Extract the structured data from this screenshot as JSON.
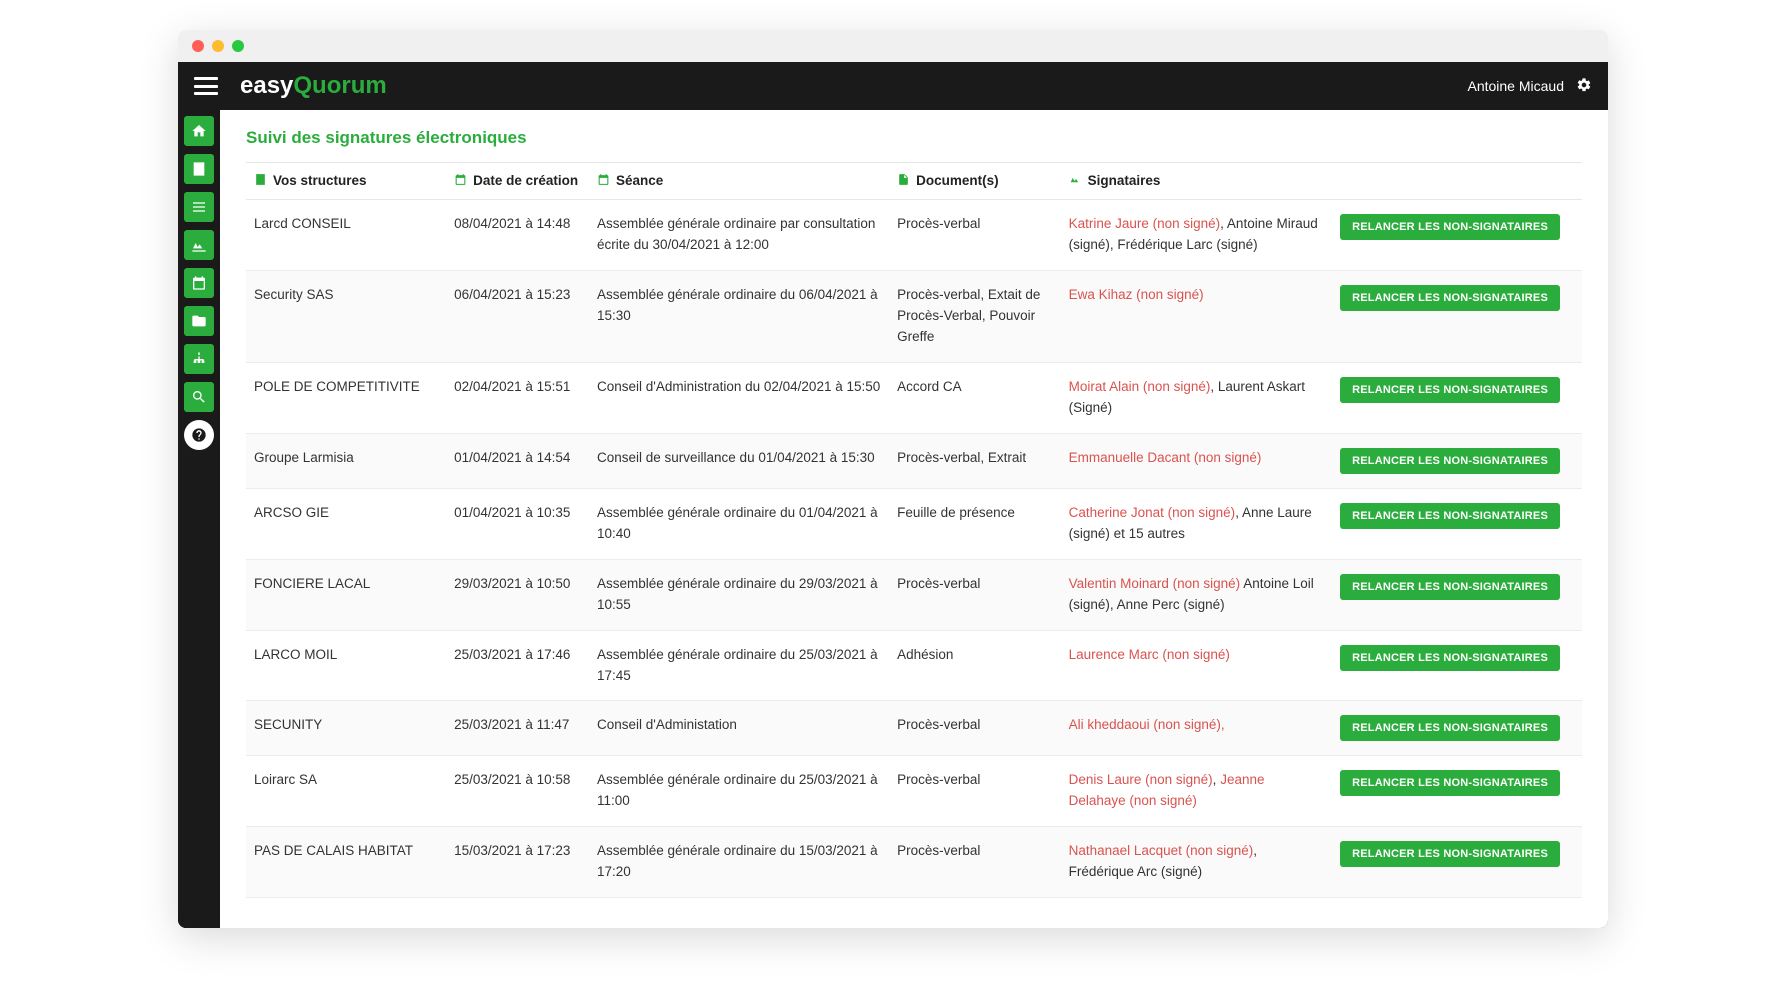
{
  "window": {
    "title": "easyQuorum"
  },
  "brand": {
    "part1": "easy",
    "part2": "Quorum"
  },
  "user": {
    "name": "Antoine Micaud"
  },
  "page": {
    "title": "Suivi des signatures électroniques"
  },
  "columns": {
    "structures": "Vos structures",
    "date": "Date de création",
    "seance": "Séance",
    "documents": "Document(s)",
    "signataires": "Signataires"
  },
  "action_label": "RELANCER LES NON-SIGNATAIRES",
  "rows": [
    {
      "structure": "Larcd CONSEIL",
      "date": "08/04/2021 à 14:48",
      "seance": "Assemblée générale ordinaire par consultation écrite du 30/04/2021 à 12:00",
      "documents": "Procès-verbal",
      "signataires": [
        {
          "text": "Katrine Jaure (non signé)",
          "unsigned": true
        },
        {
          "text": ", Antoine Miraud (signé), Frédérique Larc (signé)",
          "unsigned": false
        }
      ]
    },
    {
      "structure": "Security SAS",
      "date": "06/04/2021 à 15:23",
      "seance": "Assemblée générale ordinaire du 06/04/2021 à 15:30",
      "documents": "Procès-verbal, Extait de Procès-Verbal, Pouvoir Greffe",
      "signataires": [
        {
          "text": "Ewa Kihaz (non signé)",
          "unsigned": true
        }
      ]
    },
    {
      "structure": "POLE DE COMPETITIVITE",
      "date": "02/04/2021 à 15:51",
      "seance": "Conseil d'Administration du 02/04/2021 à 15:50",
      "documents": "Accord CA",
      "signataires": [
        {
          "text": "Moirat Alain (non signé)",
          "unsigned": true
        },
        {
          "text": ", Laurent Askart (Signé)",
          "unsigned": false
        }
      ]
    },
    {
      "structure": "Groupe Larmisia",
      "date": "01/04/2021 à 14:54",
      "seance": "Conseil de surveillance du 01/04/2021 à 15:30",
      "documents": "Procès-verbal, Extrait",
      "signataires": [
        {
          "text": "Emmanuelle Dacant (non signé)",
          "unsigned": true
        }
      ]
    },
    {
      "structure": "ARCSO GIE",
      "date": "01/04/2021 à 10:35",
      "seance": "Assemblée générale ordinaire du 01/04/2021 à 10:40",
      "documents": "Feuille de présence",
      "signataires": [
        {
          "text": "Catherine Jonat (non signé)",
          "unsigned": true
        },
        {
          "text": ", Anne Laure (signé) et 15 autres",
          "unsigned": false
        }
      ]
    },
    {
      "structure": "FONCIERE LACAL",
      "date": "29/03/2021 à 10:50",
      "seance": "Assemblée générale ordinaire du 29/03/2021 à 10:55",
      "documents": "Procès-verbal",
      "signataires": [
        {
          "text": "Valentin Moinard (non signé)",
          "unsigned": true
        },
        {
          "text": " Antoine Loil (signé), Anne Perc (signé)",
          "unsigned": false
        }
      ]
    },
    {
      "structure": "LARCO MOIL",
      "date": "25/03/2021 à 17:46",
      "seance": "Assemblée générale ordinaire du 25/03/2021 à 17:45",
      "documents": "Adhésion",
      "signataires": [
        {
          "text": "Laurence Marc (non signé)",
          "unsigned": true
        }
      ]
    },
    {
      "structure": "SECUNITY",
      "date": "25/03/2021 à 11:47",
      "seance": "Conseil d'Administation",
      "documents": "Procès-verbal",
      "signataires": [
        {
          "text": "Ali kheddaoui (non signé),",
          "unsigned": true
        }
      ]
    },
    {
      "structure": "Loirarc SA",
      "date": "25/03/2021 à 10:58",
      "seance": "Assemblée générale ordinaire du 25/03/2021 à 11:00",
      "documents": "Procès-verbal",
      "signataires": [
        {
          "text": "Denis Laure (non signé)",
          "unsigned": true
        },
        {
          "text": ", ",
          "unsigned": false
        },
        {
          "text": "Jeanne Delahaye (non signé)",
          "unsigned": true
        }
      ]
    },
    {
      "structure": "PAS DE CALAIS HABITAT",
      "date": "15/03/2021 à 17:23",
      "seance": "Assemblée générale ordinaire du 15/03/2021 à 17:20",
      "documents": "Procès-verbal",
      "signataires": [
        {
          "text": "Nathanael Lacquet (non signé)",
          "unsigned": true
        },
        {
          "text": ", Frédérique Arc (signé)",
          "unsigned": false
        }
      ]
    }
  ],
  "colors": {
    "brand_green": "#2aad3c",
    "unsigned": "#d9534f",
    "topbar_bg": "#1a1a1a"
  }
}
